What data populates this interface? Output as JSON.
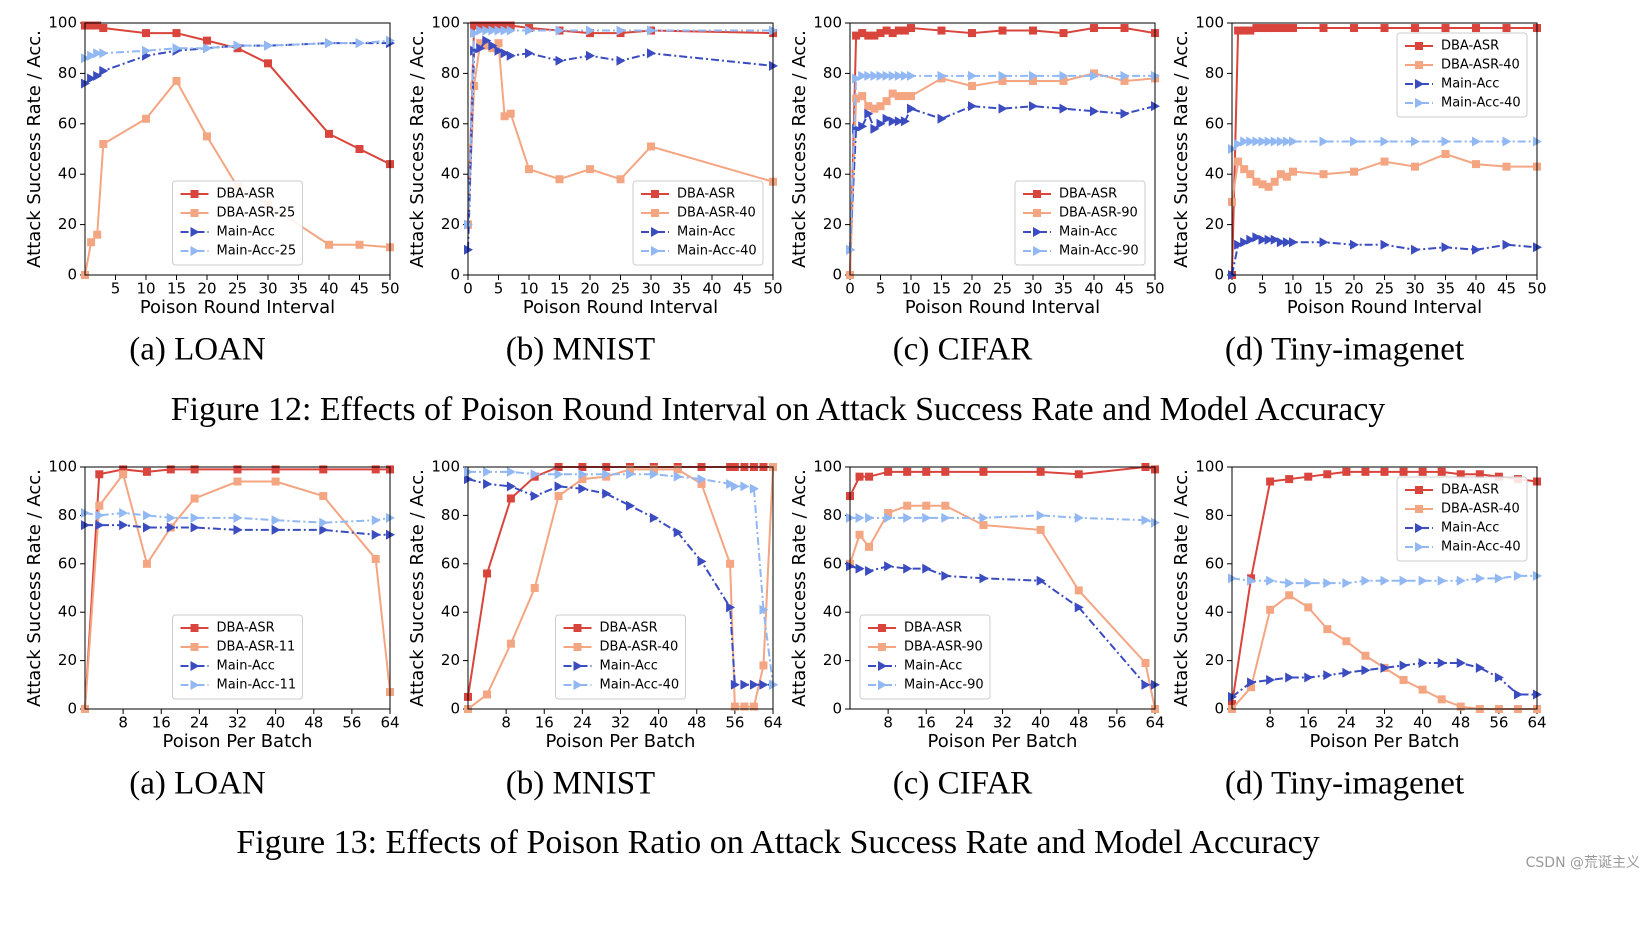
{
  "figure_captions": [
    "Figure 12: Effects of Poison Round Interval on Attack Success Rate and Model Accuracy",
    "Figure 13: Effects of Poison Ratio on Attack Success Rate and Model Accuracy"
  ],
  "watermark": "CSDN @荒诞主义",
  "chart_data": [
    {
      "type": "line",
      "title": "(a) LOAN",
      "xlabel": "Poison Round Interval",
      "ylabel": "Attack Success Rate / Acc.",
      "legend": "lower center",
      "xlim": [
        0,
        50
      ],
      "ylim": [
        0,
        100
      ],
      "xticks": [
        5,
        10,
        15,
        20,
        25,
        30,
        35,
        40,
        45,
        50
      ],
      "yticks": [
        0,
        20,
        40,
        60,
        80,
        100
      ],
      "x": [
        0,
        1,
        2,
        3,
        10,
        15,
        20,
        25,
        30,
        40,
        45,
        50
      ],
      "series": [
        {
          "name": "DBA-ASR",
          "color": "#d9443c",
          "marker": "s",
          "linestyle": "-",
          "values": [
            99,
            99,
            99,
            98,
            96,
            96,
            93,
            90,
            84,
            56,
            50,
            44
          ]
        },
        {
          "name": "DBA-ASR-25",
          "color": "#f4a582",
          "marker": "s",
          "linestyle": "-",
          "values": [
            0,
            13,
            16,
            52,
            62,
            77,
            55,
            35,
            28,
            12,
            12,
            11
          ]
        },
        {
          "name": "Main-Acc",
          "color": "#3a4cc0",
          "marker": ">",
          "linestyle": "-.",
          "values": [
            76,
            78,
            79,
            81,
            87,
            89,
            90,
            91,
            91,
            92,
            92,
            92
          ]
        },
        {
          "name": "Main-Acc-25",
          "color": "#92b8f4",
          "marker": ">",
          "linestyle": "-.",
          "values": [
            86,
            87,
            88,
            88,
            89,
            90,
            90,
            91,
            91,
            92,
            92,
            93
          ]
        }
      ]
    },
    {
      "type": "line",
      "title": "(b) MNIST",
      "xlabel": "Poison Round Interval",
      "ylabel": "Attack Success Rate / Acc.",
      "legend": "lower right",
      "xlim": [
        0,
        50
      ],
      "ylim": [
        0,
        100
      ],
      "xticks": [
        0,
        5,
        10,
        15,
        20,
        25,
        30,
        35,
        40,
        45,
        50
      ],
      "yticks": [
        0,
        20,
        40,
        60,
        80,
        100
      ],
      "x": [
        0,
        1,
        2,
        3,
        4,
        5,
        6,
        7,
        10,
        15,
        20,
        25,
        30,
        50
      ],
      "series": [
        {
          "name": "DBA-ASR",
          "color": "#d9443c",
          "marker": "s",
          "linestyle": "-",
          "values": [
            20,
            99,
            99,
            99,
            99,
            99,
            99,
            99,
            98,
            97,
            96,
            96,
            97,
            96
          ]
        },
        {
          "name": "DBA-ASR-40",
          "color": "#f4a582",
          "marker": "s",
          "linestyle": "-",
          "values": [
            20,
            75,
            92,
            91,
            90,
            92,
            63,
            64,
            42,
            38,
            42,
            38,
            51,
            37
          ]
        },
        {
          "name": "Main-Acc",
          "color": "#3a4cc0",
          "marker": ">",
          "linestyle": "-.",
          "values": [
            10,
            89,
            90,
            93,
            91,
            89,
            88,
            87,
            88,
            85,
            87,
            85,
            88,
            83
          ]
        },
        {
          "name": "Main-Acc-40",
          "color": "#92b8f4",
          "marker": ">",
          "linestyle": "-.",
          "values": [
            20,
            96,
            97,
            97,
            97,
            97,
            97,
            97,
            97,
            97,
            97,
            97,
            97,
            97
          ]
        }
      ]
    },
    {
      "type": "line",
      "title": "(c) CIFAR",
      "xlabel": "Poison Round Interval",
      "ylabel": "Attack Success Rate / Acc.",
      "legend": "lower right",
      "xlim": [
        0,
        50
      ],
      "ylim": [
        0,
        100
      ],
      "xticks": [
        0,
        5,
        10,
        15,
        20,
        25,
        30,
        35,
        40,
        45,
        50
      ],
      "yticks": [
        0,
        20,
        40,
        60,
        80,
        100
      ],
      "x": [
        0,
        1,
        2,
        3,
        4,
        5,
        6,
        7,
        8,
        9,
        10,
        15,
        20,
        25,
        30,
        35,
        40,
        45,
        50
      ],
      "series": [
        {
          "name": "DBA-ASR",
          "color": "#d9443c",
          "marker": "s",
          "linestyle": "-",
          "values": [
            0,
            95,
            96,
            95,
            95,
            96,
            97,
            96,
            97,
            97,
            98,
            97,
            96,
            97,
            97,
            96,
            98,
            98,
            96
          ]
        },
        {
          "name": "DBA-ASR-90",
          "color": "#f4a582",
          "marker": "s",
          "linestyle": "-",
          "values": [
            0,
            70,
            71,
            67,
            66,
            67,
            69,
            72,
            71,
            71,
            71,
            78,
            75,
            77,
            77,
            77,
            80,
            77,
            78
          ]
        },
        {
          "name": "Main-Acc",
          "color": "#3a4cc0",
          "marker": ">",
          "linestyle": "-.",
          "values": [
            10,
            58,
            59,
            64,
            58,
            60,
            62,
            61,
            61,
            61,
            66,
            62,
            67,
            66,
            67,
            66,
            65,
            64,
            67
          ]
        },
        {
          "name": "Main-Acc-90",
          "color": "#92b8f4",
          "marker": ">",
          "linestyle": "-.",
          "values": [
            10,
            78,
            79,
            79,
            79,
            79,
            79,
            79,
            79,
            79,
            79,
            79,
            79,
            79,
            79,
            79,
            79,
            79,
            79
          ]
        }
      ]
    },
    {
      "type": "line",
      "title": "(d) Tiny-imagenet",
      "xlabel": "Poison Round Interval",
      "ylabel": "Attack Success Rate / Acc.",
      "legend": "upper right",
      "xlim": [
        0,
        50
      ],
      "ylim": [
        0,
        100
      ],
      "xticks": [
        0,
        5,
        10,
        15,
        20,
        25,
        30,
        35,
        40,
        45,
        50
      ],
      "yticks": [
        0,
        20,
        40,
        60,
        80,
        100
      ],
      "x": [
        0,
        1,
        2,
        3,
        4,
        5,
        6,
        7,
        8,
        9,
        10,
        15,
        20,
        25,
        30,
        35,
        40,
        45,
        50
      ],
      "series": [
        {
          "name": "DBA-ASR",
          "color": "#d9443c",
          "marker": "s",
          "linestyle": "-",
          "values": [
            0,
            97,
            97,
            97,
            98,
            98,
            98,
            98,
            98,
            98,
            98,
            98,
            98,
            98,
            98,
            98,
            98,
            98,
            98
          ]
        },
        {
          "name": "DBA-ASR-40",
          "color": "#f4a582",
          "marker": "s",
          "linestyle": "-",
          "values": [
            29,
            45,
            42,
            40,
            37,
            36,
            35,
            37,
            40,
            39,
            41,
            40,
            41,
            45,
            43,
            48,
            44,
            43,
            43
          ]
        },
        {
          "name": "Main-Acc",
          "color": "#3a4cc0",
          "marker": ">",
          "linestyle": "-.",
          "values": [
            0,
            12,
            13,
            14,
            15,
            14,
            14,
            14,
            13,
            13,
            13,
            13,
            12,
            12,
            10,
            11,
            10,
            12,
            11
          ]
        },
        {
          "name": "Main-Acc-40",
          "color": "#92b8f4",
          "marker": ">",
          "linestyle": "-.",
          "values": [
            50,
            52,
            53,
            53,
            53,
            53,
            53,
            53,
            53,
            53,
            53,
            53,
            53,
            53,
            53,
            53,
            53,
            53,
            53
          ]
        }
      ]
    },
    {
      "type": "line",
      "title": "(a) LOAN",
      "xlabel": "Poison Per Batch",
      "ylabel": "Attack Success Rate / Acc.",
      "legend": "lower center",
      "xlim": [
        0,
        64
      ],
      "ylim": [
        0,
        100
      ],
      "xticks": [
        8,
        16,
        24,
        32,
        40,
        48,
        56,
        64
      ],
      "yticks": [
        0,
        20,
        40,
        60,
        80,
        100
      ],
      "x": [
        0,
        3,
        8,
        13,
        18,
        23,
        32,
        40,
        50,
        61,
        64
      ],
      "series": [
        {
          "name": "DBA-ASR",
          "color": "#d9443c",
          "marker": "s",
          "linestyle": "-",
          "values": [
            0,
            97,
            99,
            98,
            99,
            99,
            99,
            99,
            99,
            99,
            99
          ]
        },
        {
          "name": "DBA-ASR-11",
          "color": "#f4a582",
          "marker": "s",
          "linestyle": "-",
          "values": [
            0,
            84,
            97,
            60,
            75,
            87,
            94,
            94,
            88,
            62,
            7
          ]
        },
        {
          "name": "Main-Acc",
          "color": "#3a4cc0",
          "marker": ">",
          "linestyle": "-.",
          "values": [
            76,
            76,
            76,
            75,
            75,
            75,
            74,
            74,
            74,
            72,
            72
          ]
        },
        {
          "name": "Main-Acc-11",
          "color": "#92b8f4",
          "marker": ">",
          "linestyle": "-.",
          "values": [
            81,
            80,
            81,
            80,
            79,
            79,
            79,
            78,
            77,
            78,
            79
          ]
        }
      ]
    },
    {
      "type": "line",
      "title": "(b) MNIST",
      "xlabel": "Poison Per Batch",
      "ylabel": "Attack Success Rate / Acc.",
      "legend": "lower center",
      "xlim": [
        0,
        64
      ],
      "ylim": [
        0,
        100
      ],
      "xticks": [
        8,
        16,
        24,
        32,
        40,
        48,
        56,
        64
      ],
      "yticks": [
        0,
        20,
        40,
        60,
        80,
        100
      ],
      "x": [
        0,
        4,
        9,
        14,
        19,
        24,
        29,
        34,
        39,
        44,
        49,
        55,
        56,
        58,
        60,
        62,
        64
      ],
      "series": [
        {
          "name": "DBA-ASR",
          "color": "#d9443c",
          "marker": "s",
          "linestyle": "-",
          "values": [
            5,
            56,
            87,
            96,
            100,
            100,
            100,
            100,
            100,
            100,
            100,
            100,
            100,
            100,
            100,
            100,
            100
          ]
        },
        {
          "name": "DBA-ASR-40",
          "color": "#f4a582",
          "marker": "s",
          "linestyle": "-",
          "values": [
            0,
            6,
            27,
            50,
            88,
            95,
            96,
            99,
            99,
            99,
            93,
            60,
            1,
            1,
            1,
            18,
            100
          ]
        },
        {
          "name": "Main-Acc",
          "color": "#3a4cc0",
          "marker": ">",
          "linestyle": "-.",
          "values": [
            95,
            93,
            92,
            88,
            92,
            91,
            89,
            84,
            79,
            73,
            61,
            42,
            10,
            10,
            10,
            10,
            10
          ]
        },
        {
          "name": "Main-Acc-40",
          "color": "#92b8f4",
          "marker": ">",
          "linestyle": "-.",
          "values": [
            98,
            98,
            98,
            97,
            97,
            97,
            97,
            97,
            97,
            96,
            95,
            93,
            92,
            92,
            91,
            41,
            10
          ]
        }
      ]
    },
    {
      "type": "line",
      "title": "(c) CIFAR",
      "xlabel": "Poison Per Batch",
      "ylabel": "Attack Success Rate / Acc.",
      "legend": "lower left",
      "xlim": [
        0,
        64
      ],
      "ylim": [
        0,
        100
      ],
      "xticks": [
        8,
        16,
        24,
        32,
        40,
        48,
        56,
        64
      ],
      "yticks": [
        0,
        20,
        40,
        60,
        80,
        100
      ],
      "x": [
        0,
        2,
        4,
        8,
        12,
        16,
        20,
        28,
        40,
        48,
        62,
        64
      ],
      "series": [
        {
          "name": "DBA-ASR",
          "color": "#d9443c",
          "marker": "s",
          "linestyle": "-",
          "values": [
            88,
            96,
            96,
            98,
            98,
            98,
            98,
            98,
            98,
            97,
            100,
            99
          ]
        },
        {
          "name": "DBA-ASR-90",
          "color": "#f4a582",
          "marker": "s",
          "linestyle": "-",
          "values": [
            60,
            72,
            67,
            81,
            84,
            84,
            84,
            76,
            74,
            49,
            19,
            0
          ]
        },
        {
          "name": "Main-Acc",
          "color": "#3a4cc0",
          "marker": ">",
          "linestyle": "-.",
          "values": [
            59,
            58,
            57,
            59,
            58,
            58,
            55,
            54,
            53,
            42,
            10,
            10
          ]
        },
        {
          "name": "Main-Acc-90",
          "color": "#92b8f4",
          "marker": ">",
          "linestyle": "-.",
          "values": [
            79,
            79,
            79,
            79,
            79,
            79,
            79,
            79,
            80,
            79,
            78,
            77
          ]
        }
      ]
    },
    {
      "type": "line",
      "title": "(d) Tiny-imagenet",
      "xlabel": "Poison Per Batch",
      "ylabel": "Attack Success Rate / Acc.",
      "legend": "upper right",
      "xlim": [
        0,
        64
      ],
      "ylim": [
        0,
        100
      ],
      "xticks": [
        8,
        16,
        24,
        32,
        40,
        48,
        56,
        64
      ],
      "yticks": [
        0,
        20,
        40,
        60,
        80,
        100
      ],
      "x": [
        0,
        4,
        8,
        12,
        16,
        20,
        24,
        28,
        32,
        36,
        40,
        44,
        48,
        52,
        56,
        60,
        64
      ],
      "series": [
        {
          "name": "DBA-ASR",
          "color": "#d9443c",
          "marker": "s",
          "linestyle": "-",
          "values": [
            2,
            54,
            94,
            95,
            96,
            97,
            98,
            98,
            98,
            98,
            98,
            98,
            97,
            97,
            96,
            95,
            94
          ]
        },
        {
          "name": "DBA-ASR-40",
          "color": "#f4a582",
          "marker": "s",
          "linestyle": "-",
          "values": [
            0,
            9,
            41,
            47,
            42,
            33,
            28,
            22,
            17,
            12,
            8,
            4,
            1,
            0,
            0,
            0,
            0
          ]
        },
        {
          "name": "Main-Acc",
          "color": "#3a4cc0",
          "marker": ">",
          "linestyle": "-.",
          "values": [
            5,
            11,
            12,
            13,
            13,
            14,
            15,
            16,
            17,
            18,
            19,
            19,
            19,
            17,
            13,
            6,
            6
          ]
        },
        {
          "name": "Main-Acc-40",
          "color": "#92b8f4",
          "marker": ">",
          "linestyle": "-.",
          "values": [
            54,
            53,
            53,
            52,
            52,
            52,
            52,
            53,
            53,
            53,
            53,
            53,
            53,
            54,
            54,
            55,
            55
          ]
        }
      ]
    }
  ]
}
